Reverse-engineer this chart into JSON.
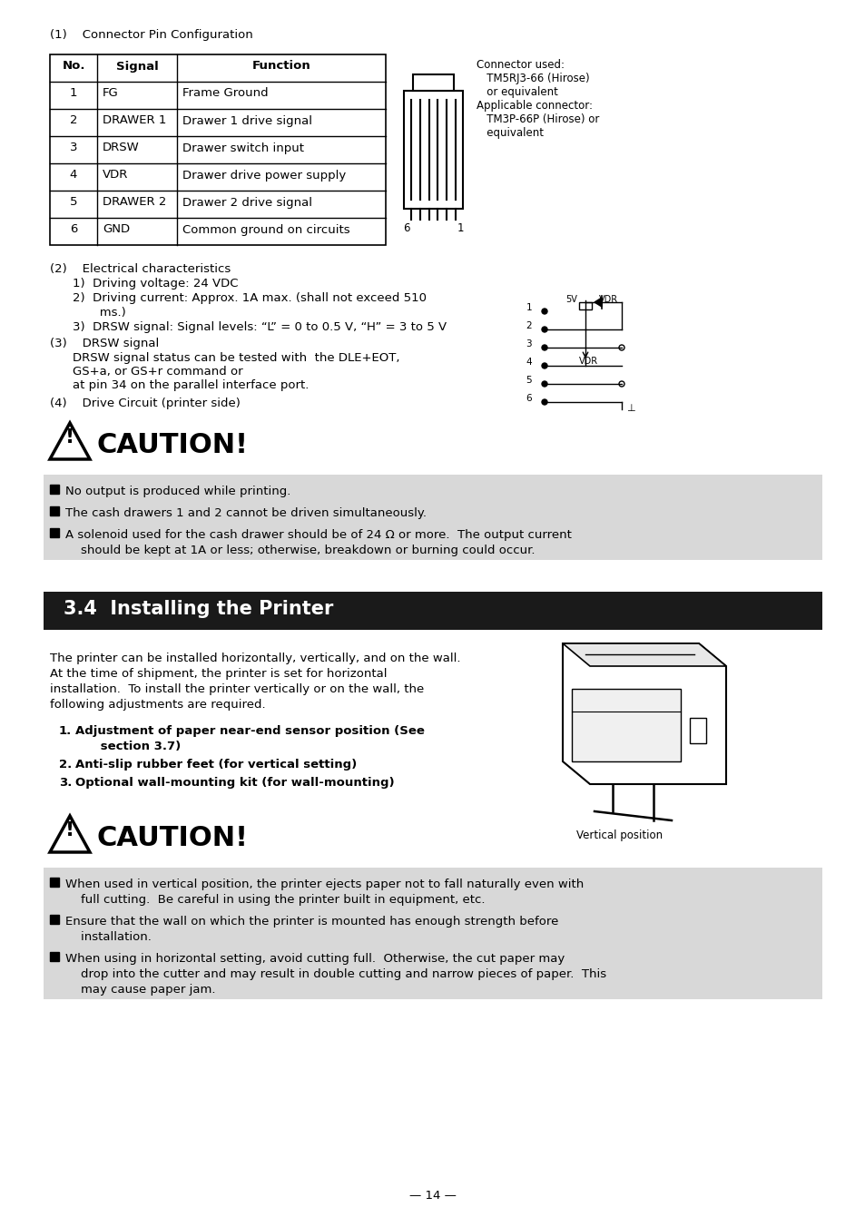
{
  "page_bg": "#ffffff",
  "section1_label": "(1)    Connector Pin Configuration",
  "table_headers": [
    "No.",
    "Signal",
    "Function"
  ],
  "table_rows": [
    [
      "1",
      "FG",
      "Frame Ground"
    ],
    [
      "2",
      "DRAWER 1",
      "Drawer 1 drive signal"
    ],
    [
      "3",
      "DRSW",
      "Drawer switch input"
    ],
    [
      "4",
      "VDR",
      "Drawer drive power supply"
    ],
    [
      "5",
      "DRAWER 2",
      "Drawer 2 drive signal"
    ],
    [
      "6",
      "GND",
      "Common ground on circuits"
    ]
  ],
  "connector_note": "Connector used:\n   TM5RJ3-66 (Hirose)\n   or equivalent\nApplicable connector:\n   TM3P-66P (Hirose) or\n   equivalent",
  "section2_label": "(2)    Electrical characteristics",
  "elec_items": [
    "1)  Driving voltage: 24 VDC",
    "2)  Driving current: Approx. 1A max. (shall not exceed 510",
    "       ms.)",
    "3)  DRSW signal: Signal levels: “L” = 0 to 0.5 V, “H” = 3 to 5 V"
  ],
  "section3_label": "(3)    DRSW signal",
  "section3_body": [
    "DRSW signal status can be tested with  the DLE+EOT,",
    "GS+a, or GS+r command or",
    "at pin 34 on the parallel interface port."
  ],
  "section4_label": "(4)    Drive Circuit (printer side)",
  "caution1_title": "CAUTION!",
  "caution1_items": [
    [
      "No output is produced while printing."
    ],
    [
      "The cash drawers 1 and 2 cannot be driven simultaneously."
    ],
    [
      "A solenoid used for the cash drawer should be of 24 Ω or more.  The output current",
      "    should be kept at 1A or less; otherwise, breakdown or burning could occur."
    ]
  ],
  "section_header_bg": "#1a1a1a",
  "section_header_text": "#ffffff",
  "section_header": "3.4  Installing the Printer",
  "install_body": [
    "The printer can be installed horizontally, vertically, and on the wall.",
    "At the time of shipment, the printer is set for horizontal",
    "installation.  To install the printer vertically or on the wall, the",
    "following adjustments are required."
  ],
  "install_items": [
    [
      "Adjustment of paper near-end sensor position (See",
      "      section 3.7)"
    ],
    [
      "Anti-slip rubber feet (for vertical setting)"
    ],
    [
      "Optional wall-mounting kit (for wall-mounting)"
    ]
  ],
  "vertical_position_label": "Vertical position",
  "caution2_title": "CAUTION!",
  "caution2_items": [
    [
      "When used in vertical position, the printer ejects paper not to fall naturally even with",
      "    full cutting.  Be careful in using the printer built in equipment, etc."
    ],
    [
      "Ensure that the wall on which the printer is mounted has enough strength before",
      "    installation."
    ],
    [
      "When using in horizontal setting, avoid cutting full.  Otherwise, the cut paper may",
      "    drop into the cutter and may result in double cutting and narrow pieces of paper.  This",
      "    may cause paper jam."
    ]
  ],
  "caution_bg": "#d8d8d8",
  "page_number": "— 14 —",
  "body_fontsize": 9.5,
  "small_fontsize": 8.5,
  "header_fontsize": 15,
  "caution_title_fontsize": 22,
  "section_label_fontsize": 9.5
}
